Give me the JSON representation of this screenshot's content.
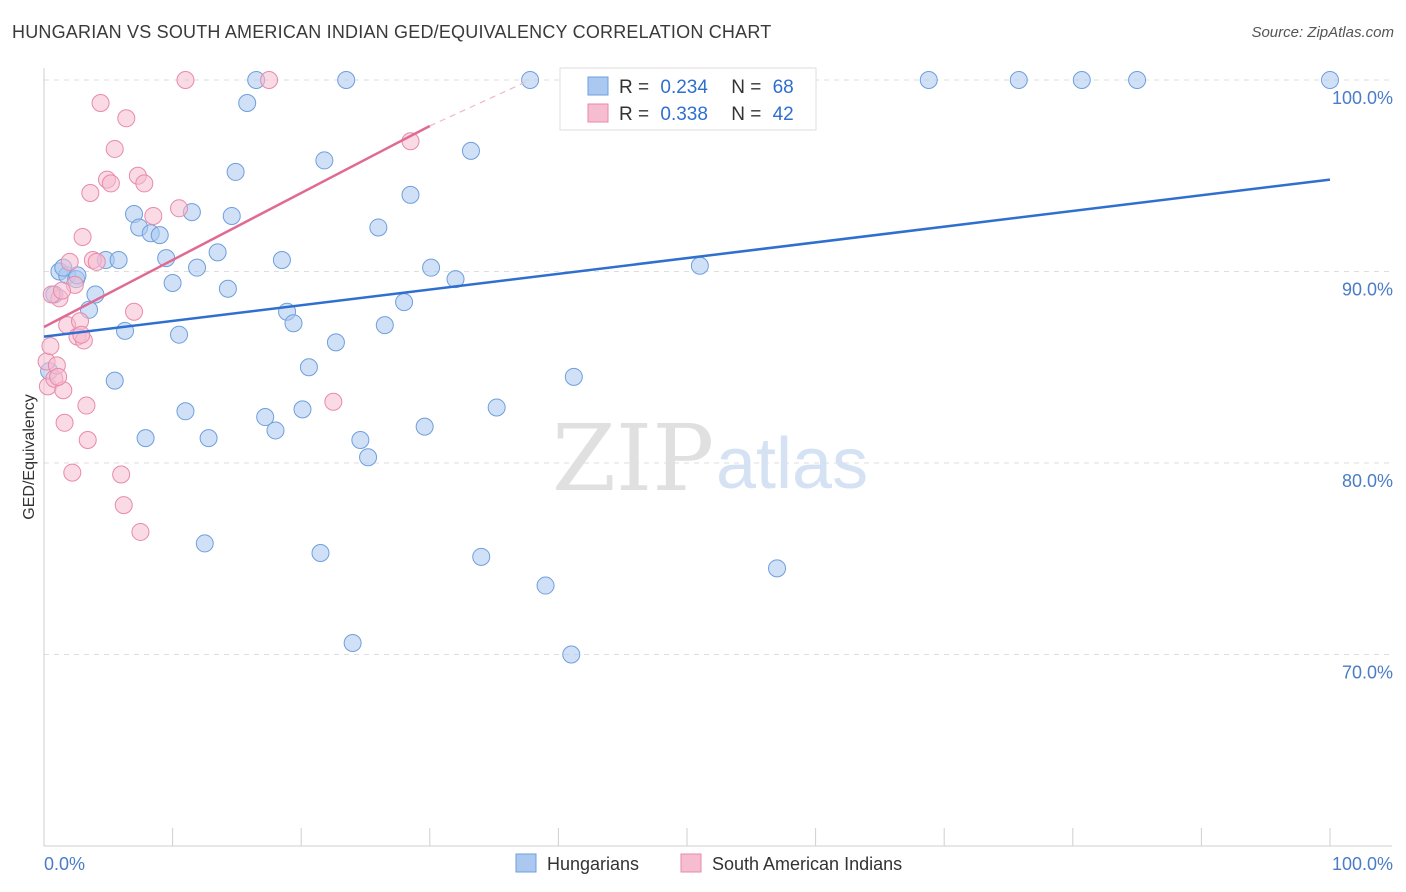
{
  "title": "HUNGARIAN VS SOUTH AMERICAN INDIAN GED/EQUIVALENCY CORRELATION CHART",
  "source": "Source: ZipAtlas.com",
  "watermark": {
    "zip": "ZIP",
    "atlas": "atlas"
  },
  "colors": {
    "blue_fill": "#aac8f0",
    "blue_stroke": "#6f9fdc",
    "blue_line": "#2f6fcf",
    "pink_fill": "#f6bcd0",
    "pink_stroke": "#e88aab",
    "pink_line": "#e06a93",
    "tick_text": "#4a7cc7",
    "grid": "#dddddd"
  },
  "legend": {
    "r_label": "R =",
    "n_label": "N =",
    "rows": [
      {
        "r": "0.234",
        "n": "68"
      },
      {
        "r": "0.338",
        "n": "42"
      }
    ]
  },
  "bottom_legend": [
    "Hungarians",
    "South American Indians"
  ],
  "chart_data": {
    "type": "scatter",
    "title": "HUNGARIAN VS SOUTH AMERICAN INDIAN GED/EQUIVALENCY CORRELATION CHART",
    "xlabel": "",
    "ylabel": "GED/Equivalency",
    "xlim": [
      0,
      100
    ],
    "ylim": [
      60,
      100
    ],
    "x_tick_labels": [
      "0.0%",
      "100.0%"
    ],
    "y_ticks": [
      70,
      80,
      90,
      100
    ],
    "y_tick_labels": [
      "70.0%",
      "80.0%",
      "90.0%",
      "100.0%"
    ],
    "grid": true,
    "legend_position": "top-center",
    "series": [
      {
        "name": "Hungarians",
        "color": "#aac8f0",
        "r": 0.234,
        "n": 68,
        "trend": {
          "x": [
            0,
            100
          ],
          "y": [
            86.6,
            94.8
          ]
        },
        "points": [
          [
            0.8,
            88.8
          ],
          [
            1.2,
            90.0
          ],
          [
            1.8,
            89.8
          ],
          [
            2.5,
            89.6
          ],
          [
            2.6,
            89.8
          ],
          [
            3.5,
            88.0
          ],
          [
            1.5,
            90.2
          ],
          [
            4.0,
            88.8
          ],
          [
            4.8,
            90.6
          ],
          [
            5.5,
            84.3
          ],
          [
            5.8,
            90.6
          ],
          [
            6.3,
            86.9
          ],
          [
            7.0,
            93.0
          ],
          [
            7.4,
            92.3
          ],
          [
            7.9,
            81.3
          ],
          [
            8.3,
            92.0
          ],
          [
            9.0,
            91.9
          ],
          [
            9.5,
            90.7
          ],
          [
            10.0,
            89.4
          ],
          [
            10.5,
            86.7
          ],
          [
            11.0,
            82.7
          ],
          [
            11.5,
            93.1
          ],
          [
            11.9,
            90.2
          ],
          [
            12.5,
            75.8
          ],
          [
            12.8,
            81.3
          ],
          [
            13.5,
            91.0
          ],
          [
            14.3,
            89.1
          ],
          [
            14.6,
            92.9
          ],
          [
            14.9,
            95.2
          ],
          [
            15.8,
            98.8
          ],
          [
            16.5,
            100.0
          ],
          [
            17.2,
            82.4
          ],
          [
            18.0,
            81.7
          ],
          [
            18.5,
            90.6
          ],
          [
            18.9,
            87.9
          ],
          [
            19.4,
            87.3
          ],
          [
            20.1,
            82.8
          ],
          [
            20.6,
            85.0
          ],
          [
            21.5,
            75.3
          ],
          [
            21.8,
            95.8
          ],
          [
            22.7,
            86.3
          ],
          [
            23.5,
            100.0
          ],
          [
            24.0,
            70.6
          ],
          [
            24.6,
            81.2
          ],
          [
            25.2,
            80.3
          ],
          [
            26.0,
            92.3
          ],
          [
            26.5,
            87.2
          ],
          [
            28.0,
            88.4
          ],
          [
            28.5,
            94.0
          ],
          [
            29.6,
            81.9
          ],
          [
            30.1,
            90.2
          ],
          [
            32.0,
            89.6
          ],
          [
            33.2,
            96.3
          ],
          [
            34.0,
            75.1
          ],
          [
            35.2,
            82.9
          ],
          [
            37.8,
            100.0
          ],
          [
            39.0,
            73.6
          ],
          [
            41.0,
            70.0
          ],
          [
            41.2,
            84.5
          ],
          [
            51.0,
            90.3
          ],
          [
            54.8,
            100.0
          ],
          [
            57.0,
            74.5
          ],
          [
            68.8,
            100.0
          ],
          [
            75.8,
            100.0
          ],
          [
            80.7,
            100.0
          ],
          [
            85.0,
            100.0
          ],
          [
            100.0,
            100.0
          ],
          [
            0.4,
            84.8
          ]
        ]
      },
      {
        "name": "South American Indians",
        "color": "#f6bcd0",
        "r": 0.338,
        "n": 42,
        "trend": {
          "x": [
            0,
            30
          ],
          "y": [
            87.1,
            97.6
          ]
        },
        "trend_dashed": {
          "x": [
            30,
            37.8
          ],
          "y": [
            97.6,
            100.0
          ]
        },
        "points": [
          [
            0.2,
            85.3
          ],
          [
            0.3,
            84.0
          ],
          [
            0.5,
            86.1
          ],
          [
            0.8,
            84.4
          ],
          [
            1.0,
            85.1
          ],
          [
            1.2,
            88.6
          ],
          [
            1.5,
            83.8
          ],
          [
            1.6,
            82.1
          ],
          [
            1.8,
            87.2
          ],
          [
            2.0,
            90.5
          ],
          [
            2.2,
            79.5
          ],
          [
            2.4,
            89.3
          ],
          [
            2.6,
            86.6
          ],
          [
            2.8,
            87.4
          ],
          [
            3.0,
            91.8
          ],
          [
            3.1,
            86.4
          ],
          [
            3.3,
            83.0
          ],
          [
            3.4,
            81.2
          ],
          [
            3.6,
            94.1
          ],
          [
            3.8,
            90.6
          ],
          [
            4.1,
            90.5
          ],
          [
            4.4,
            98.8
          ],
          [
            4.9,
            94.8
          ],
          [
            5.2,
            94.6
          ],
          [
            5.5,
            96.4
          ],
          [
            6.0,
            79.4
          ],
          [
            6.2,
            77.8
          ],
          [
            6.4,
            98.0
          ],
          [
            7.0,
            87.9
          ],
          [
            7.3,
            95.0
          ],
          [
            7.5,
            76.4
          ],
          [
            7.8,
            94.6
          ],
          [
            8.5,
            92.9
          ],
          [
            10.5,
            93.3
          ],
          [
            11.0,
            100.0
          ],
          [
            17.5,
            100.0
          ],
          [
            22.5,
            83.2
          ],
          [
            28.5,
            96.8
          ],
          [
            0.6,
            88.8
          ],
          [
            1.4,
            89.0
          ],
          [
            2.9,
            86.7
          ],
          [
            1.1,
            84.5
          ]
        ]
      }
    ]
  }
}
